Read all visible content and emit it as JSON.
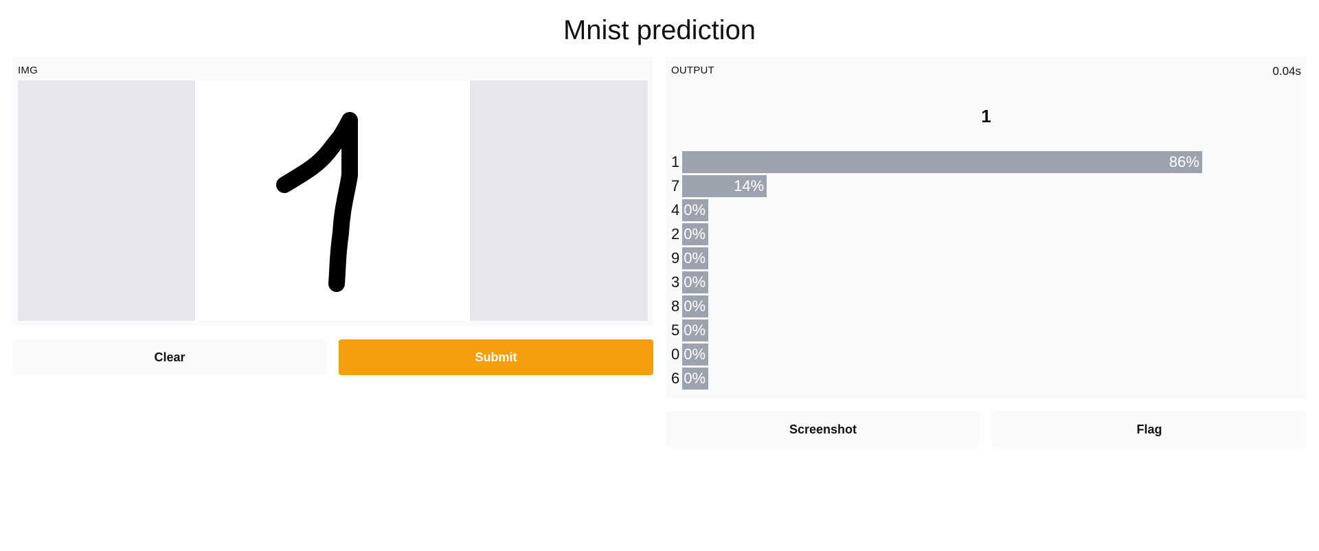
{
  "title": "Mnist prediction",
  "input": {
    "label": "IMG"
  },
  "buttons": {
    "clear": "Clear",
    "submit": "Submit",
    "screenshot": "Screenshot",
    "flag": "Flag"
  },
  "output": {
    "label": "OUTPUT",
    "timing": "0.04s",
    "prediction": "1",
    "confidences": [
      {
        "digit": "1",
        "pct": "86%",
        "value": 0.86
      },
      {
        "digit": "7",
        "pct": "14%",
        "value": 0.14
      },
      {
        "digit": "4",
        "pct": "0%",
        "value": 0.0
      },
      {
        "digit": "2",
        "pct": "0%",
        "value": 0.0
      },
      {
        "digit": "9",
        "pct": "0%",
        "value": 0.0
      },
      {
        "digit": "3",
        "pct": "0%",
        "value": 0.0
      },
      {
        "digit": "8",
        "pct": "0%",
        "value": 0.0
      },
      {
        "digit": "5",
        "pct": "0%",
        "value": 0.0
      },
      {
        "digit": "0",
        "pct": "0%",
        "value": 0.0
      },
      {
        "digit": "6",
        "pct": "0%",
        "value": 0.0
      }
    ]
  },
  "colors": {
    "accent": "#f59e0b",
    "bar": "#9ca3af",
    "panel": "#f9fafb"
  }
}
